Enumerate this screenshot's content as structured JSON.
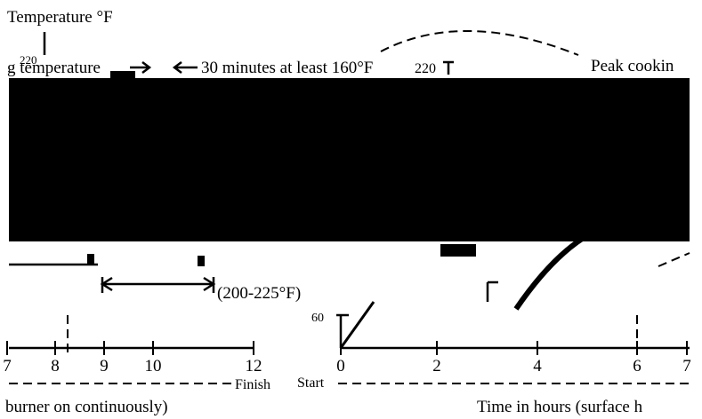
{
  "labels": {
    "axis_title": "Temperature °F",
    "top_left_tick": "220",
    "left_label": "g temperature",
    "hold_note": "30 minutes at least 160°F",
    "top_tick": "220",
    "peak": "Peak cookin",
    "range": "(200-225°F)",
    "tick_60": "60",
    "finish": "Finish",
    "start": "Start",
    "left_caption": "burner on continuously)",
    "right_caption": "Time in hours (surface h"
  },
  "left_axis_ticks": [
    "7",
    "8",
    "9",
    "10",
    "12"
  ],
  "right_axis_ticks": [
    "0",
    "2",
    "4",
    "6",
    "7"
  ]
}
